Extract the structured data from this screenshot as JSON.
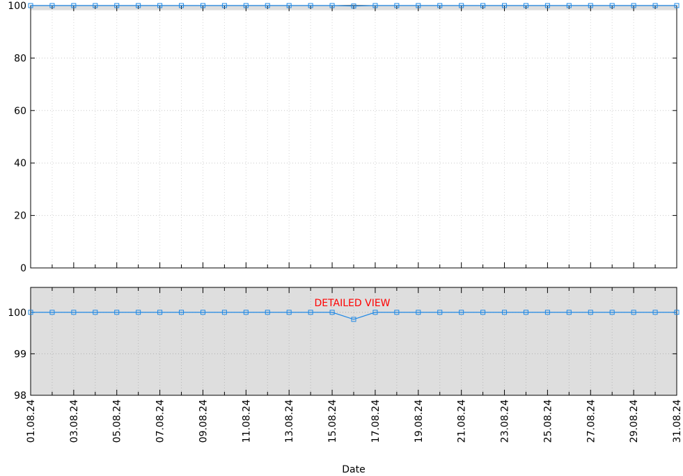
{
  "chart_data": [
    {
      "type": "line",
      "panel": "main",
      "title": "",
      "xlabel": "",
      "ylabel": "",
      "ylim": [
        0,
        100
      ],
      "yticks": [
        0,
        20,
        40,
        60,
        80,
        100
      ],
      "grid": true,
      "shaded_band": [
        99.83,
        100
      ],
      "x": [
        "01.08.24",
        "02.08.24",
        "03.08.24",
        "04.08.24",
        "05.08.24",
        "06.08.24",
        "07.08.24",
        "08.08.24",
        "09.08.24",
        "10.08.24",
        "11.08.24",
        "12.08.24",
        "13.08.24",
        "14.08.24",
        "15.08.24",
        "16.08.24",
        "17.08.24",
        "18.08.24",
        "19.08.24",
        "20.08.24",
        "21.08.24",
        "22.08.24",
        "23.08.24",
        "24.08.24",
        "25.08.24",
        "26.08.24",
        "27.08.24",
        "28.08.24",
        "29.08.24",
        "30.08.24",
        "31.08.24"
      ],
      "series": [
        {
          "values": [
            100,
            100,
            100,
            100,
            100,
            100,
            100,
            100,
            100,
            100,
            100,
            100,
            100,
            100,
            100,
            99.83,
            100,
            100,
            100,
            100,
            100,
            100,
            100,
            100,
            100,
            100,
            100,
            100,
            100,
            100,
            100
          ]
        }
      ],
      "colors": {
        "line": "#1e88e5",
        "marker": "#1e88e5",
        "band": "#dedede"
      }
    },
    {
      "type": "line",
      "panel": "detail",
      "title": "",
      "annotation": "DETAILED VIEW",
      "xlabel": "Date",
      "ylabel": "",
      "ylim": [
        98,
        100.6
      ],
      "yticks": [
        98,
        99,
        100
      ],
      "xticklabels": [
        "01.08.24",
        "03.08.24",
        "05.08.24",
        "07.08.24",
        "09.08.24",
        "11.08.24",
        "13.08.24",
        "15.08.24",
        "17.08.24",
        "19.08.24",
        "21.08.24",
        "23.08.24",
        "25.08.24",
        "27.08.24",
        "29.08.24",
        "31.08.24"
      ],
      "grid": true,
      "background": "#dedede",
      "colors": {
        "annotation": "#ff0000"
      }
    }
  ]
}
